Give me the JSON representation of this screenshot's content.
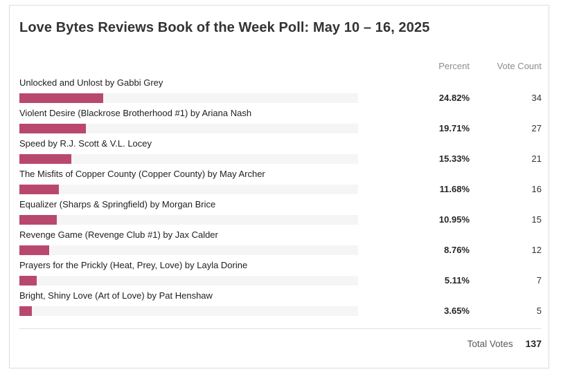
{
  "title": "Love Bytes Reviews Book of the Week Poll: May 10 – 16, 2025",
  "columns": {
    "percent": "Percent",
    "vote_count": "Vote Count"
  },
  "options": [
    {
      "label": "Unlocked and Unlost by Gabbi Grey",
      "percent": 24.82,
      "percent_label": "24.82%",
      "votes": "34"
    },
    {
      "label": "Violent Desire (Blackrose Brotherhood #1) by Ariana Nash",
      "percent": 19.71,
      "percent_label": "19.71%",
      "votes": "27"
    },
    {
      "label": "Speed by R.J. Scott & V.L. Locey",
      "percent": 15.33,
      "percent_label": "15.33%",
      "votes": "21"
    },
    {
      "label": "The Misfits of Copper County (Copper County) by May Archer",
      "percent": 11.68,
      "percent_label": "11.68%",
      "votes": "16"
    },
    {
      "label": "Equalizer (Sharps & Springfield) by Morgan Brice",
      "percent": 10.95,
      "percent_label": "10.95%",
      "votes": "15"
    },
    {
      "label": "Revenge Game (Revenge Club #1) by Jax Calder",
      "percent": 8.76,
      "percent_label": "8.76%",
      "votes": "12"
    },
    {
      "label": "Prayers for the Prickly (Heat, Prey, Love) by Layla Dorine",
      "percent": 5.11,
      "percent_label": "5.11%",
      "votes": "7"
    },
    {
      "label": "Bright, Shiny Love (Art of Love) by Pat Henshaw",
      "percent": 3.65,
      "percent_label": "3.65%",
      "votes": "5"
    }
  ],
  "total": {
    "label": "Total Votes",
    "value": "137"
  },
  "colors": {
    "bar_fill": "#b9486e",
    "bar_track": "#f5f5f6",
    "card_border": "#dcdcdc"
  },
  "chart_data": {
    "type": "bar",
    "orientation": "horizontal",
    "title": "Love Bytes Reviews Book of the Week Poll: May 10 – 16, 2025",
    "categories": [
      "Unlocked and Unlost by Gabbi Grey",
      "Violent Desire (Blackrose Brotherhood #1) by Ariana Nash",
      "Speed by R.J. Scott & V.L. Locey",
      "The Misfits of Copper County (Copper County) by May Archer",
      "Equalizer (Sharps & Springfield) by Morgan Brice",
      "Revenge Game (Revenge Club #1) by Jax Calder",
      "Prayers for the Prickly (Heat, Prey, Love) by Layla Dorine",
      "Bright, Shiny Love (Art of Love) by Pat Henshaw"
    ],
    "series": [
      {
        "name": "Percent",
        "values": [
          24.82,
          19.71,
          15.33,
          11.68,
          10.95,
          8.76,
          5.11,
          3.65
        ]
      },
      {
        "name": "Vote Count",
        "values": [
          34,
          27,
          21,
          16,
          15,
          12,
          7,
          5
        ]
      }
    ],
    "xlim": [
      0,
      100
    ],
    "grid": false,
    "legend": false,
    "total_votes": 137
  }
}
